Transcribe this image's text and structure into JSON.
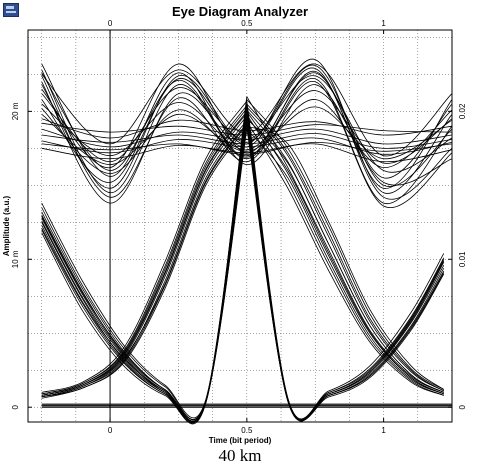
{
  "window": {
    "icon": "chart-window-icon"
  },
  "chart_data": {
    "type": "line",
    "title": "Eye Diagram Analyzer",
    "xlabel": "Time (bit period)",
    "ylabel": "Amplitude (a.u.)",
    "caption": "40 km",
    "xlim": [
      -0.3,
      1.25
    ],
    "ylim_left": [
      -0.001,
      0.0255
    ],
    "ylim_right": [
      -0.001,
      0.0255
    ],
    "left_ticks": [
      {
        "value": 0,
        "label": "0"
      },
      {
        "value": 0.01,
        "label": "10 m"
      },
      {
        "value": 0.02,
        "label": "20 m"
      }
    ],
    "right_ticks": [
      {
        "value": 0,
        "label": "0"
      },
      {
        "value": 0.01,
        "label": "0.01"
      },
      {
        "value": 0.02,
        "label": "0.02"
      }
    ],
    "bottom_ticks": [
      {
        "value": 0,
        "label": "0"
      },
      {
        "value": 0.5,
        "label": "0.5"
      },
      {
        "value": 1,
        "label": "1"
      }
    ],
    "top_ticks": [
      {
        "value": 0,
        "label": "0"
      },
      {
        "value": 0.5,
        "label": "0.5"
      },
      {
        "value": 1,
        "label": "1"
      }
    ],
    "grid": true,
    "line_color": "#000000",
    "grid_color": "#000000",
    "series": [
      {
        "group": "one-one",
        "x": [
          -0.25,
          0.0,
          0.25,
          0.5,
          0.75,
          1.0,
          1.25
        ],
        "y": [
          0.0225,
          0.0178,
          0.0228,
          0.0185,
          0.0232,
          0.017,
          0.0212
        ]
      },
      {
        "group": "one-one",
        "x": [
          -0.25,
          0.0,
          0.25,
          0.5,
          0.75,
          1.0,
          1.25
        ],
        "y": [
          0.0215,
          0.0162,
          0.0232,
          0.0172,
          0.0226,
          0.0155,
          0.0205
        ]
      },
      {
        "group": "one-one",
        "x": [
          -0.25,
          0.0,
          0.25,
          0.5,
          0.75,
          1.0,
          1.25
        ],
        "y": [
          0.0208,
          0.0152,
          0.0222,
          0.0178,
          0.0235,
          0.0145,
          0.0198
        ]
      },
      {
        "group": "one-one",
        "x": [
          -0.25,
          0.0,
          0.25,
          0.5,
          0.75,
          1.0,
          1.25
        ],
        "y": [
          0.0228,
          0.0145,
          0.0218,
          0.0168,
          0.0222,
          0.0138,
          0.019
        ]
      },
      {
        "group": "one-one",
        "x": [
          -0.25,
          0.0,
          0.25,
          0.5,
          0.75,
          1.0,
          1.25
        ],
        "y": [
          0.022,
          0.0138,
          0.0212,
          0.0176,
          0.0229,
          0.0142,
          0.0175
        ]
      },
      {
        "group": "one-one",
        "x": [
          -0.25,
          0.0,
          0.25,
          0.5,
          0.75,
          1.0,
          1.25
        ],
        "y": [
          0.0232,
          0.0156,
          0.0226,
          0.0164,
          0.0218,
          0.0152,
          0.0168
        ]
      },
      {
        "group": "one-one",
        "x": [
          -0.25,
          0.0,
          0.25,
          0.5,
          0.75,
          1.0,
          1.25
        ],
        "y": [
          0.0212,
          0.0166,
          0.0216,
          0.0181,
          0.0224,
          0.016,
          0.0182
        ]
      },
      {
        "group": "one-one",
        "x": [
          -0.25,
          0.0,
          0.25,
          0.5,
          0.75,
          1.0,
          1.25
        ],
        "y": [
          0.0205,
          0.017,
          0.0206,
          0.0174,
          0.0214,
          0.0165,
          0.0195
        ]
      },
      {
        "group": "one-one",
        "x": [
          -0.25,
          0.0,
          0.25,
          0.5,
          0.75,
          1.0,
          1.25
        ],
        "y": [
          0.0218,
          0.0148,
          0.0224,
          0.0179,
          0.0231,
          0.015,
          0.0188
        ]
      },
      {
        "group": "one-one",
        "x": [
          -0.25,
          0.0,
          0.25,
          0.5,
          0.75,
          1.0,
          1.25
        ],
        "y": [
          0.0224,
          0.0142,
          0.0209,
          0.0166,
          0.022,
          0.0136,
          0.0172
        ]
      },
      {
        "group": "one-one",
        "x": [
          -0.25,
          0.0,
          0.25,
          0.5,
          0.75,
          1.0,
          1.25
        ],
        "y": [
          0.0195,
          0.0182,
          0.0194,
          0.0187,
          0.0193,
          0.0184,
          0.019
        ]
      },
      {
        "group": "one-one",
        "x": [
          -0.25,
          0.0,
          0.25,
          0.5,
          0.75,
          1.0,
          1.25
        ],
        "y": [
          0.0188,
          0.0176,
          0.0186,
          0.0181,
          0.0188,
          0.0178,
          0.0184
        ]
      },
      {
        "group": "one-one",
        "x": [
          -0.25,
          0.0,
          0.25,
          0.5,
          0.75,
          1.0,
          1.25
        ],
        "y": [
          0.018,
          0.0172,
          0.0181,
          0.0176,
          0.0182,
          0.0171,
          0.0179
        ]
      },
      {
        "group": "one-one",
        "x": [
          -0.25,
          0.0,
          0.25,
          0.5,
          0.75,
          1.0,
          1.25
        ],
        "y": [
          0.0175,
          0.0168,
          0.0177,
          0.0172,
          0.0178,
          0.0166,
          0.0174
        ]
      },
      {
        "group": "one-one",
        "x": [
          -0.25,
          0.0,
          0.25,
          0.5,
          0.75,
          1.0,
          1.25
        ],
        "y": [
          0.0192,
          0.0186,
          0.019,
          0.0184,
          0.0191,
          0.0187,
          0.0186
        ]
      },
      {
        "group": "one-one",
        "x": [
          -0.25,
          0.0,
          0.25,
          0.5,
          0.75,
          1.0,
          1.25
        ],
        "y": [
          0.0184,
          0.0179,
          0.0184,
          0.0178,
          0.0185,
          0.0175,
          0.0181
        ]
      },
      {
        "group": "one-one",
        "x": [
          -0.25,
          0.0,
          0.25,
          0.5,
          0.75,
          1.0,
          1.25
        ],
        "y": [
          0.0202,
          0.0158,
          0.0201,
          0.017,
          0.0208,
          0.0162,
          0.0201
        ]
      },
      {
        "group": "one-one",
        "x": [
          -0.25,
          0.0,
          0.25,
          0.5,
          0.75,
          1.0,
          1.25
        ],
        "y": [
          0.0198,
          0.0164,
          0.0198,
          0.0173,
          0.0203,
          0.0168,
          0.0194
        ]
      },
      {
        "group": "one-one",
        "x": [
          -0.25,
          0.0,
          0.25,
          0.5,
          0.75,
          1.0,
          1.25
        ],
        "y": [
          0.0226,
          0.016,
          0.0221,
          0.0169,
          0.0227,
          0.0148,
          0.0208
        ]
      },
      {
        "group": "one-one",
        "x": [
          -0.25,
          0.0,
          0.25,
          0.5,
          0.75,
          1.0,
          1.25
        ],
        "y": [
          0.0178,
          0.0174,
          0.0178,
          0.0171,
          0.0179,
          0.0173,
          0.0178
        ]
      },
      {
        "group": "one-zero",
        "x": [
          -0.25,
          -0.1,
          0.05,
          0.2,
          0.35,
          0.5,
          0.65,
          0.8,
          0.95,
          1.1,
          1.22
        ],
        "y": [
          0.0138,
          0.0085,
          0.0042,
          0.0015,
          0.0005,
          0.0195,
          0.0165,
          0.011,
          0.0055,
          0.0022,
          0.001
        ]
      },
      {
        "group": "one-zero",
        "x": [
          -0.25,
          -0.1,
          0.05,
          0.2,
          0.35,
          0.5,
          0.65,
          0.8,
          0.95,
          1.1,
          1.22
        ],
        "y": [
          0.0132,
          0.008,
          0.0038,
          0.0012,
          0.0004,
          0.0205,
          0.0172,
          0.0118,
          0.006,
          0.0025,
          0.0011
        ]
      },
      {
        "group": "one-zero",
        "x": [
          -0.25,
          -0.1,
          0.05,
          0.2,
          0.35,
          0.5,
          0.65,
          0.8,
          0.95,
          1.1,
          1.22
        ],
        "y": [
          0.0128,
          0.0076,
          0.0035,
          0.0011,
          0.0004,
          0.02,
          0.0158,
          0.0102,
          0.005,
          0.002,
          0.0009
        ]
      },
      {
        "group": "one-zero",
        "x": [
          -0.25,
          -0.1,
          0.05,
          0.2,
          0.35,
          0.5,
          0.65,
          0.8,
          0.95,
          1.1,
          1.22
        ],
        "y": [
          0.0125,
          0.0073,
          0.0032,
          0.001,
          0.0003,
          0.019,
          0.0178,
          0.0125,
          0.0066,
          0.0028,
          0.0012
        ]
      },
      {
        "group": "one-zero",
        "x": [
          -0.25,
          -0.1,
          0.05,
          0.2,
          0.35,
          0.5,
          0.65,
          0.8,
          0.95,
          1.1,
          1.22
        ],
        "y": [
          0.012,
          0.0068,
          0.003,
          0.0009,
          0.0003,
          0.021,
          0.0162,
          0.0106,
          0.0052,
          0.0021,
          0.001
        ]
      },
      {
        "group": "one-zero",
        "x": [
          -0.25,
          -0.1,
          0.05,
          0.2,
          0.35,
          0.5,
          0.65,
          0.8,
          0.95,
          1.1,
          1.22
        ],
        "y": [
          0.0118,
          0.0065,
          0.0028,
          0.0008,
          0.0003,
          0.0198,
          0.0152,
          0.0096,
          0.0046,
          0.0018,
          0.0008
        ]
      },
      {
        "group": "one-zero",
        "x": [
          -0.25,
          -0.1,
          0.05,
          0.2,
          0.35,
          0.5,
          0.65,
          0.8,
          0.95,
          1.1,
          1.22
        ],
        "y": [
          0.0123,
          0.0071,
          0.0033,
          0.0011,
          0.0004,
          0.0203,
          0.017,
          0.0115,
          0.0058,
          0.0024,
          0.0011
        ]
      },
      {
        "group": "one-zero",
        "x": [
          -0.25,
          -0.1,
          0.05,
          0.2,
          0.35,
          0.5,
          0.65,
          0.8,
          0.95,
          1.1,
          1.22
        ],
        "y": [
          0.013,
          0.0078,
          0.0036,
          0.0012,
          0.0004,
          0.0193,
          0.0148,
          0.0092,
          0.0044,
          0.0017,
          0.0008
        ]
      },
      {
        "group": "one-zero",
        "x": [
          -0.25,
          -0.1,
          0.05,
          0.2,
          0.35,
          0.5,
          0.65,
          0.8,
          0.95,
          1.1,
          1.22
        ],
        "y": [
          0.0135,
          0.0082,
          0.004,
          0.0014,
          0.0005,
          0.0208,
          0.0175,
          0.0122,
          0.0063,
          0.0026,
          0.0012
        ]
      },
      {
        "group": "one-zero",
        "x": [
          -0.25,
          -0.1,
          0.05,
          0.2,
          0.35,
          0.5,
          0.65,
          0.8,
          0.95,
          1.1,
          1.22
        ],
        "y": [
          0.0126,
          0.0074,
          0.0034,
          0.001,
          0.0003,
          0.0196,
          0.016,
          0.0104,
          0.0051,
          0.002,
          0.0009
        ]
      },
      {
        "group": "one-zero",
        "x": [
          -0.25,
          -0.1,
          0.05,
          0.2,
          0.35,
          0.5,
          0.65,
          0.8,
          0.95,
          1.1,
          1.22
        ],
        "y": [
          0.0121,
          0.007,
          0.0031,
          0.0009,
          0.0003,
          0.0201,
          0.0166,
          0.011,
          0.0055,
          0.0022,
          0.001
        ]
      },
      {
        "group": "one-zero",
        "x": [
          -0.25,
          -0.1,
          0.05,
          0.2,
          0.35,
          0.5,
          0.65,
          0.8,
          0.95,
          1.1,
          1.22
        ],
        "y": [
          0.0129,
          0.0077,
          0.0037,
          0.0012,
          0.0004,
          0.0188,
          0.0155,
          0.0099,
          0.0048,
          0.0019,
          0.0009
        ]
      },
      {
        "group": "zero-one",
        "x": [
          -0.25,
          -0.1,
          0.05,
          0.2,
          0.35,
          0.5,
          0.65,
          0.8,
          0.95,
          1.1,
          1.22
        ],
        "y": [
          0.0008,
          0.0015,
          0.0035,
          0.009,
          0.016,
          0.0199,
          0.0005,
          0.0009,
          0.0024,
          0.0058,
          0.0098
        ]
      },
      {
        "group": "zero-one",
        "x": [
          -0.25,
          -0.1,
          0.05,
          0.2,
          0.35,
          0.5,
          0.65,
          0.8,
          0.95,
          1.1,
          1.22
        ],
        "y": [
          0.0007,
          0.0014,
          0.0032,
          0.0085,
          0.0155,
          0.0194,
          0.0004,
          0.0008,
          0.0022,
          0.0055,
          0.0094
        ]
      },
      {
        "group": "zero-one",
        "x": [
          -0.25,
          -0.1,
          0.05,
          0.2,
          0.35,
          0.5,
          0.65,
          0.8,
          0.95,
          1.1,
          1.22
        ],
        "y": [
          0.0009,
          0.0016,
          0.0038,
          0.0095,
          0.0165,
          0.0204,
          0.0005,
          0.001,
          0.0026,
          0.0061,
          0.0101
        ]
      },
      {
        "group": "zero-one",
        "x": [
          -0.25,
          -0.1,
          0.05,
          0.2,
          0.35,
          0.5,
          0.65,
          0.8,
          0.95,
          1.1,
          1.22
        ],
        "y": [
          0.0006,
          0.0013,
          0.003,
          0.008,
          0.015,
          0.0189,
          0.0004,
          0.0007,
          0.002,
          0.0052,
          0.009
        ]
      },
      {
        "group": "zero-one",
        "x": [
          -0.25,
          -0.1,
          0.05,
          0.2,
          0.35,
          0.5,
          0.65,
          0.8,
          0.95,
          1.1,
          1.22
        ],
        "y": [
          0.001,
          0.0017,
          0.004,
          0.0098,
          0.0168,
          0.0207,
          0.0006,
          0.0011,
          0.0028,
          0.0064,
          0.0104
        ]
      },
      {
        "group": "zero-one",
        "x": [
          -0.25,
          -0.1,
          0.05,
          0.2,
          0.35,
          0.5,
          0.65,
          0.8,
          0.95,
          1.1,
          1.22
        ],
        "y": [
          0.0008,
          0.0015,
          0.0034,
          0.0088,
          0.0158,
          0.0197,
          0.0005,
          0.0009,
          0.0023,
          0.0057,
          0.0096
        ]
      },
      {
        "group": "zero-one",
        "x": [
          -0.25,
          -0.1,
          0.05,
          0.2,
          0.35,
          0.5,
          0.65,
          0.8,
          0.95,
          1.1,
          1.22
        ],
        "y": [
          0.0007,
          0.0014,
          0.0033,
          0.0083,
          0.0153,
          0.0192,
          0.0004,
          0.0008,
          0.0021,
          0.0054,
          0.0092
        ]
      },
      {
        "group": "zero-one",
        "x": [
          -0.25,
          -0.1,
          0.05,
          0.2,
          0.35,
          0.5,
          0.65,
          0.8,
          0.95,
          1.1,
          1.22
        ],
        "y": [
          0.0009,
          0.0016,
          0.0037,
          0.0093,
          0.0163,
          0.0202,
          0.0006,
          0.001,
          0.0025,
          0.006,
          0.01
        ]
      },
      {
        "group": "zero-one",
        "x": [
          -0.25,
          -0.1,
          0.05,
          0.2,
          0.35,
          0.5,
          0.65,
          0.8,
          0.95,
          1.1,
          1.22
        ],
        "y": [
          0.0008,
          0.0015,
          0.0036,
          0.0091,
          0.0161,
          0.02,
          0.0005,
          0.0009,
          0.0024,
          0.0059,
          0.0099
        ]
      },
      {
        "group": "zero-one",
        "x": [
          -0.25,
          -0.1,
          0.05,
          0.2,
          0.35,
          0.5,
          0.65,
          0.8,
          0.95,
          1.1,
          1.22
        ],
        "y": [
          0.0007,
          0.0013,
          0.0031,
          0.0082,
          0.0152,
          0.0191,
          0.0004,
          0.0008,
          0.0021,
          0.0053,
          0.0091
        ]
      },
      {
        "group": "zero-zero",
        "x": [
          -0.25,
          1.25
        ],
        "y": [
          0.0001,
          0.0001
        ]
      },
      {
        "group": "zero-zero",
        "x": [
          -0.25,
          1.25
        ],
        "y": [
          0.0002,
          0.0002
        ]
      },
      {
        "group": "zero-zero",
        "x": [
          -0.25,
          1.25
        ],
        "y": [
          0.0,
          0.0
        ]
      }
    ]
  }
}
